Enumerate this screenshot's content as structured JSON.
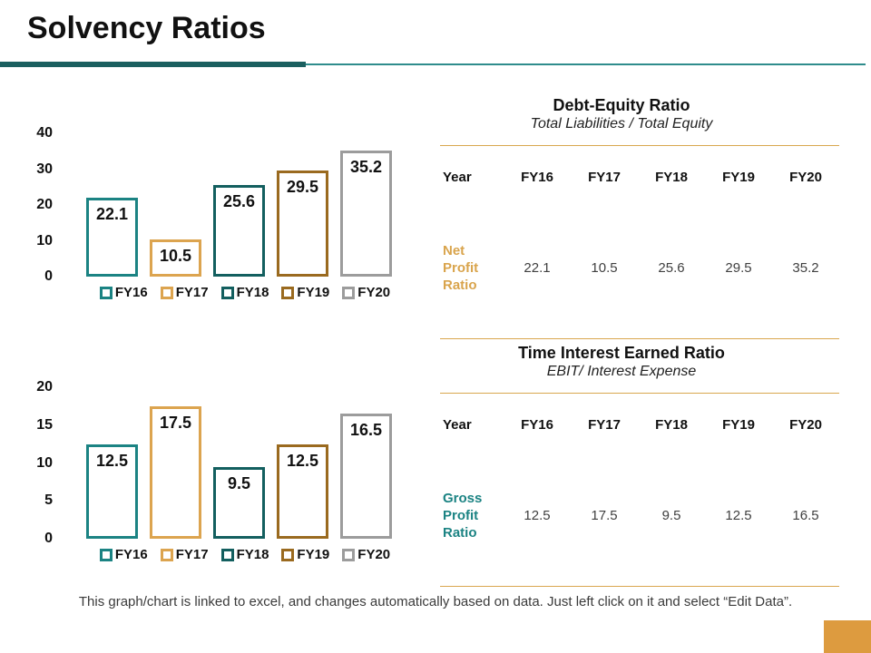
{
  "slide": {
    "title": "Solvency Ratios",
    "footer": "This graph/chart is linked to excel, and changes automatically based on data. Just left click on it and select “Edit Data”."
  },
  "colors": {
    "accent_bar_dark": "#1a5f5f",
    "accent_line": "#2f8c8c",
    "table_rule": "#d9a74f",
    "corner_square": "#dd9b3f",
    "teal": "#1b8383",
    "gold": "#dca44f",
    "dark_teal": "#135f5f",
    "brown": "#9a6a1f",
    "gray": "#9c9c9c"
  },
  "chart_data": [
    {
      "type": "bar",
      "title": "Debt-Equity Ratio chart",
      "categories": [
        "FY16",
        "FY17",
        "FY18",
        "FY19",
        "FY20"
      ],
      "values": [
        22.1,
        10.5,
        25.6,
        29.5,
        35.2
      ],
      "bar_colors": [
        "#1b8383",
        "#dca44f",
        "#135f5f",
        "#9a6a1f",
        "#9c9c9c"
      ],
      "yticks": [
        40,
        30,
        20,
        10,
        0
      ],
      "ylim": [
        0,
        40
      ],
      "grid": false,
      "legend_position": "bottom"
    },
    {
      "type": "bar",
      "title": "Time Interest Earned Ratio chart",
      "categories": [
        "FY16",
        "FY17",
        "FY18",
        "FY19",
        "FY20"
      ],
      "values": [
        12.5,
        17.5,
        9.5,
        12.5,
        16.5
      ],
      "bar_colors": [
        "#1b8383",
        "#dca44f",
        "#135f5f",
        "#9a6a1f",
        "#9c9c9c"
      ],
      "yticks": [
        20,
        15,
        10,
        5,
        0
      ],
      "ylim": [
        0,
        20
      ],
      "grid": false,
      "legend_position": "bottom"
    }
  ],
  "tables": [
    {
      "title": "Debt-Equity Ratio",
      "subtitle": "Total Liabilities / Total Equity",
      "header": [
        "Year",
        "FY16",
        "FY17",
        "FY18",
        "FY19",
        "FY20"
      ],
      "rows": [
        {
          "label": "Net Profit Ratio",
          "label_color": "#d9a44c",
          "values": [
            "22.1",
            "10.5",
            "25.6",
            "29.5",
            "35.2"
          ]
        }
      ]
    },
    {
      "title": "Time Interest Earned Ratio",
      "subtitle": "EBIT/ Interest Expense",
      "header": [
        "Year",
        "FY16",
        "FY17",
        "FY18",
        "FY19",
        "FY20"
      ],
      "rows": [
        {
          "label": "Gross Profit Ratio",
          "label_color": "#1b8383",
          "values": [
            "12.5",
            "17.5",
            "9.5",
            "12.5",
            "16.5"
          ]
        }
      ]
    }
  ]
}
